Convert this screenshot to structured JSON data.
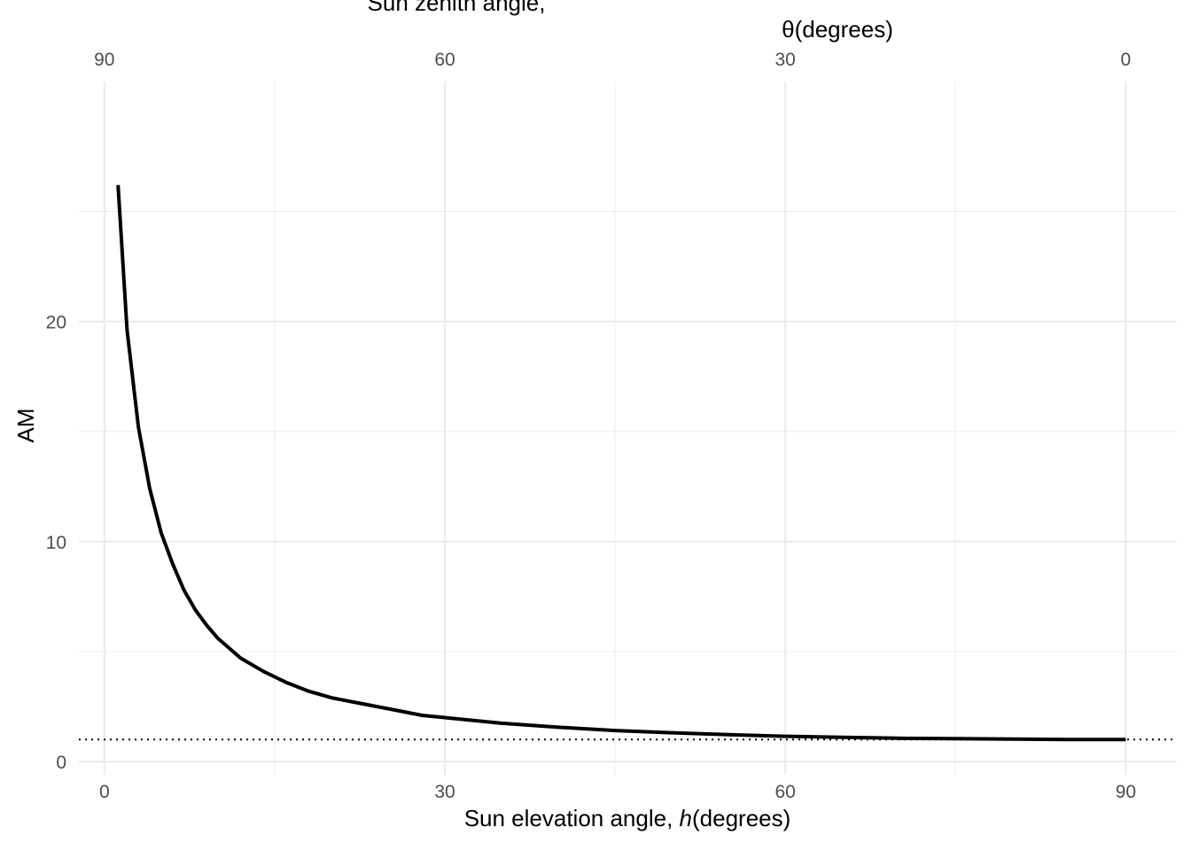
{
  "chart_data": {
    "type": "line",
    "xlabel": {
      "prefix": "Sun elevation angle, ",
      "symbol": "h",
      "suffix": "(degrees)"
    },
    "secondary_xlabel": {
      "line1": "Sun zenith angle,",
      "line2": "θ(degrees)"
    },
    "ylabel": "AM",
    "xlim": [
      -2.25,
      94.5
    ],
    "ylim": [
      -0.6,
      30.9
    ],
    "x_ticks": [
      0,
      30,
      60,
      90
    ],
    "x_tick_labels": [
      "0",
      "30",
      "60",
      "90"
    ],
    "top_ticks": [
      90,
      60,
      30,
      0
    ],
    "top_tick_labels": [
      "90",
      "60",
      "30",
      "0"
    ],
    "y_ticks": [
      0,
      10,
      20
    ],
    "y_tick_labels": [
      "0",
      "10",
      "20"
    ],
    "y_minor_ticks": [
      5,
      15,
      25
    ],
    "x_minor_ticks": [
      15,
      45,
      75
    ],
    "grid": true,
    "reference_line": {
      "y": 1,
      "style": "dotted",
      "color": "#000000"
    },
    "series": [
      {
        "color": "#000000",
        "x": [
          1.2,
          2,
          3,
          4,
          5,
          6,
          7,
          8,
          9,
          10,
          12,
          14,
          16,
          18,
          20,
          22,
          25,
          28,
          30,
          35,
          40,
          45,
          50,
          55,
          60,
          65,
          70,
          75,
          80,
          85,
          90
        ],
        "y": [
          26.2,
          19.6,
          15.2,
          12.4,
          10.4,
          9.0,
          7.8,
          6.9,
          6.2,
          5.6,
          4.7,
          4.1,
          3.6,
          3.2,
          2.9,
          2.7,
          2.4,
          2.1,
          2.0,
          1.74,
          1.56,
          1.41,
          1.31,
          1.22,
          1.15,
          1.1,
          1.06,
          1.04,
          1.02,
          1.0,
          1.0
        ]
      }
    ]
  }
}
